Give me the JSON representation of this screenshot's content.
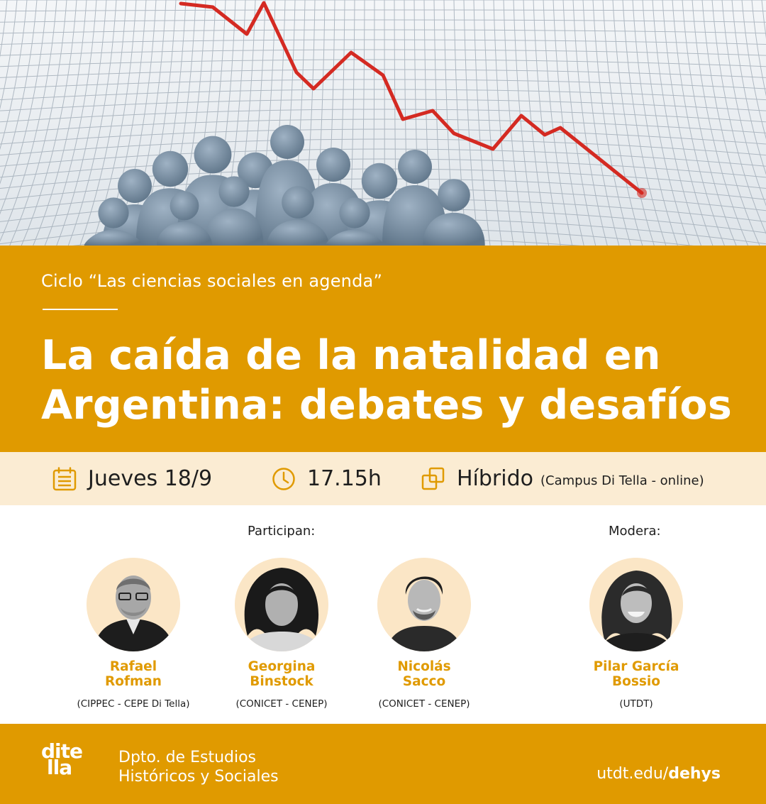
{
  "hero": {
    "image": "declining-birth-rate-graph-with-crowd-illustration"
  },
  "header": {
    "series": "Ciclo “Las ciencias sociales en agenda”",
    "title_line1": "La caída de la natalidad en",
    "title_line2": "Argentina: debates y desafíos"
  },
  "info": {
    "date": "Jueves 18/9",
    "time": "17.15h",
    "mode": "Híbrido",
    "mode_detail": "(Campus Di Tella - online)",
    "date_icon": "calendar-icon",
    "time_icon": "clock-icon",
    "mode_icon": "hybrid-squares-icon"
  },
  "participants_label": "Participan:",
  "moderator_label": "Modera:",
  "participants": [
    {
      "name_line1": "Rafael",
      "name_line2": "Rofman",
      "org": "(CIPPEC - CEPE Di Tella)"
    },
    {
      "name_line1": "Georgina",
      "name_line2": "Binstock",
      "org": "(CONICET - CENEP)"
    },
    {
      "name_line1": "Nicolás",
      "name_line2": "Sacco",
      "org": "(CONICET - CENEP)"
    }
  ],
  "moderator": {
    "name_line1": "Pilar García",
    "name_line2": "Bossio",
    "org": "(UTDT)"
  },
  "footer": {
    "logo_line1": "dite",
    "logo_line2": "lla",
    "dept_line1": "Dpto. de Estudios",
    "dept_line2": "Históricos y Sociales",
    "url_prefix": "utdt.edu/",
    "url_bold": "dehys"
  },
  "colors": {
    "accent": "#e09a00",
    "info_bg": "#fbecd3",
    "avatar_bg": "#fbe6c6",
    "line": "#d42a22"
  }
}
